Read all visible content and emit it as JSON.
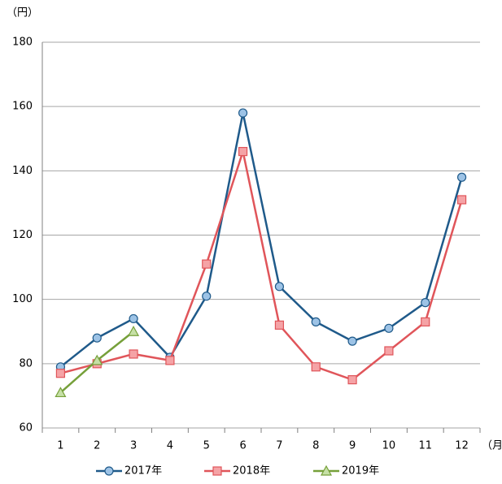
{
  "chart_data": {
    "type": "line",
    "y_unit_label": "（円）",
    "x_unit_label": "（月）",
    "categories": [
      "1",
      "2",
      "3",
      "4",
      "5",
      "6",
      "7",
      "8",
      "9",
      "10",
      "11",
      "12"
    ],
    "series": [
      {
        "name": "2017年",
        "color": "#1f5a8a",
        "marker": "circle",
        "marker_fill": "#9dc3e6",
        "values": [
          79,
          88,
          94,
          82,
          101,
          158,
          104,
          93,
          87,
          91,
          99,
          138
        ]
      },
      {
        "name": "2018年",
        "color": "#e0555a",
        "marker": "square",
        "marker_fill": "#f5a3a6",
        "values": [
          77,
          80,
          83,
          81,
          111,
          146,
          92,
          79,
          75,
          84,
          93,
          131
        ]
      },
      {
        "name": "2019年",
        "color": "#76a03a",
        "marker": "triangle",
        "marker_fill": "#c6e0a6",
        "values": [
          71,
          81,
          90,
          null,
          null,
          null,
          null,
          null,
          null,
          null,
          null,
          null
        ]
      }
    ],
    "ylim": [
      60,
      180
    ],
    "yticks": [
      60,
      80,
      100,
      120,
      140,
      160,
      180
    ],
    "grid": true,
    "legend": "bottom"
  }
}
